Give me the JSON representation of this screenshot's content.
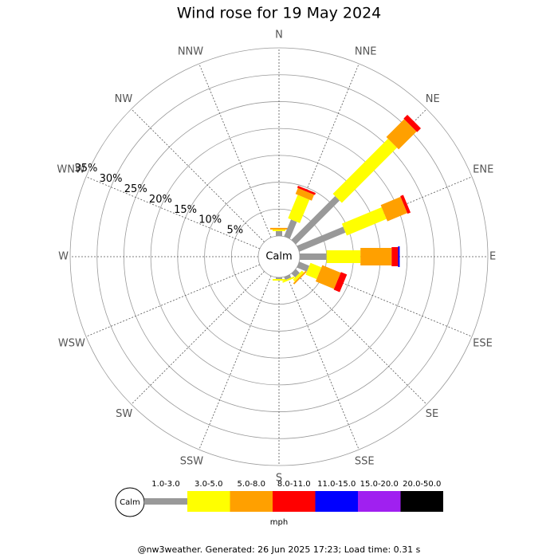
{
  "chart_data": {
    "type": "wind_rose",
    "title": "Wind rose for 19 May 2024",
    "center_label": "Calm",
    "directions": [
      "N",
      "NNE",
      "NE",
      "ENE",
      "E",
      "ESE",
      "SE",
      "SSE",
      "S",
      "SSW",
      "SW",
      "WSW",
      "W",
      "WNW",
      "NW",
      "NNW"
    ],
    "rlim": [
      0,
      35
    ],
    "rticks": [
      {
        "value": 5,
        "label": "5%"
      },
      {
        "value": 10,
        "label": "10%"
      },
      {
        "value": 15,
        "label": "15%"
      },
      {
        "value": 20,
        "label": "20%"
      },
      {
        "value": 25,
        "label": "25%"
      },
      {
        "value": 30,
        "label": "30%"
      },
      {
        "value": 35,
        "label": "35%"
      }
    ],
    "unit_label": "mph",
    "series": [
      {
        "name": "1.0-3.0",
        "color": "#999999",
        "values": [
          0.9,
          3.4,
          11.5,
          9.3,
          5.0,
          2.0,
          1.0,
          0.6,
          0.3,
          0,
          0,
          0,
          0,
          0,
          0,
          0
        ]
      },
      {
        "name": "3.0-5.0",
        "color": "#ffff00",
        "values": [
          0.3,
          4.7,
          14.5,
          8.0,
          6.3,
          2.2,
          0.5,
          0.3,
          0.3,
          0,
          0,
          0,
          0,
          0,
          0,
          0
        ]
      },
      {
        "name": "5.0-8.0",
        "color": "#ffa000",
        "values": [
          0.3,
          1.2,
          4.7,
          4.0,
          5.8,
          3.7,
          0.3,
          0,
          0,
          0,
          0,
          0,
          0,
          0,
          0,
          0
        ]
      },
      {
        "name": "8.0-11.0",
        "color": "#ff0000",
        "values": [
          0,
          0.4,
          1.0,
          0.6,
          1.2,
          1.2,
          0,
          0,
          0,
          0,
          0,
          0,
          0,
          0,
          0,
          0
        ]
      },
      {
        "name": "11.0-15.0",
        "color": "#0000ff",
        "values": [
          0,
          0,
          0,
          0,
          0.3,
          0,
          0,
          0,
          0,
          0,
          0,
          0,
          0,
          0,
          0,
          0
        ]
      },
      {
        "name": "15.0-20.0",
        "color": "#a020f0",
        "values": [
          0,
          0,
          0,
          0,
          0,
          0,
          0,
          0,
          0,
          0,
          0,
          0,
          0,
          0,
          0,
          0
        ]
      },
      {
        "name": "20.0-50.0",
        "color": "#000000",
        "values": [
          0,
          0,
          0,
          0,
          0,
          0,
          0,
          0,
          0,
          0,
          0,
          0,
          0,
          0,
          0,
          0
        ]
      }
    ]
  },
  "footer": "@nw3weather. Generated: 26 Jun 2025 17:23; Load time: 0.31 s"
}
